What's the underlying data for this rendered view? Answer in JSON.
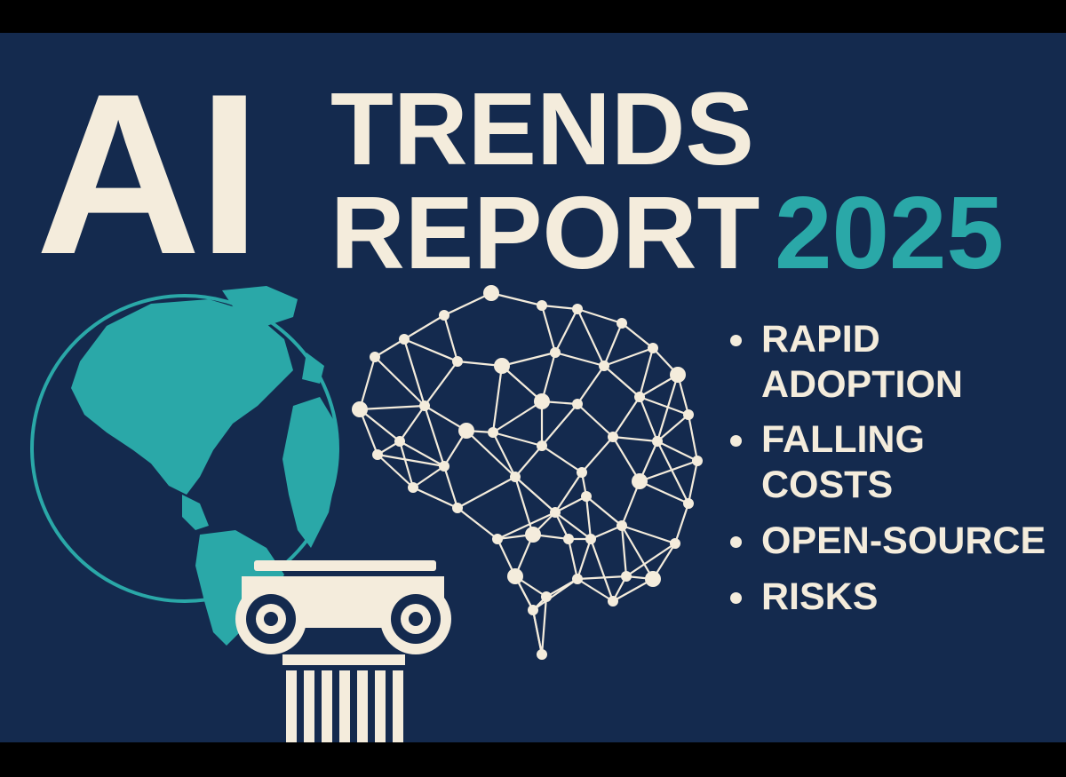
{
  "title": {
    "word_ai": "AI",
    "line1": "TRENDS",
    "line2": "REPORT",
    "year": "2025"
  },
  "bullets": [
    {
      "text": "RAPID\nADOPTION"
    },
    {
      "text": "FALLING\nCOSTS"
    },
    {
      "text": "OPEN-SOURCE"
    },
    {
      "text": "RISKS"
    }
  ],
  "colors": {
    "background": "#142a4e",
    "cream": "#f4ecdc",
    "teal": "#2aa8a8"
  },
  "icons": [
    "globe-icon",
    "column-icon",
    "brain-network-icon"
  ]
}
